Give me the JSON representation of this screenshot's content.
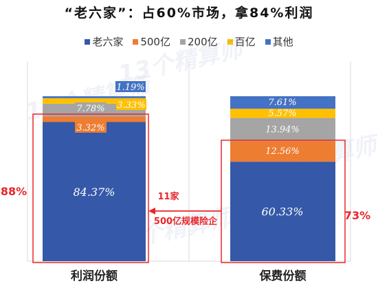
{
  "title": "“老六家”：占60%市场，拿84%利润",
  "watermark": "13个精算师",
  "colors": {
    "laoliujia": "#3558A8",
    "yi500": "#ED7D31",
    "yi200": "#A5A5A5",
    "baiyi": "#FFC000",
    "other": "#4472C4",
    "highlight": "#E8262B",
    "axis": "#D9D9D9"
  },
  "chart_data": {
    "type": "bar",
    "stacked": true,
    "percent_stacked": true,
    "ylim": [
      0,
      100
    ],
    "categories": [
      "利润份额",
      "保费份额"
    ],
    "series": [
      {
        "name": "老六家",
        "values": [
          84.37,
          60.33
        ],
        "labels": [
          "84.37%",
          "60.33%"
        ],
        "color_key": "laoliujia"
      },
      {
        "name": "500亿",
        "values": [
          3.32,
          12.56
        ],
        "labels": [
          "3.32%",
          "12.56%"
        ],
        "color_key": "yi500"
      },
      {
        "name": "200亿",
        "values": [
          7.78,
          13.94
        ],
        "labels": [
          "7.78%",
          "13.94%"
        ],
        "color_key": "yi200"
      },
      {
        "name": "百亿",
        "values": [
          3.33,
          5.57
        ],
        "labels": [
          "3.33%",
          "5.57%"
        ],
        "color_key": "baiyi"
      },
      {
        "name": "其他",
        "values": [
          1.19,
          7.61
        ],
        "labels": [
          "1.19%",
          "7.61%"
        ],
        "color_key": "other"
      }
    ],
    "legend_position": "top",
    "grid": false,
    "annotations": {
      "left_pct": "88%",
      "right_pct": "73%",
      "arrow_top": "11家",
      "arrow_bottom": "500亿规模险企"
    }
  }
}
